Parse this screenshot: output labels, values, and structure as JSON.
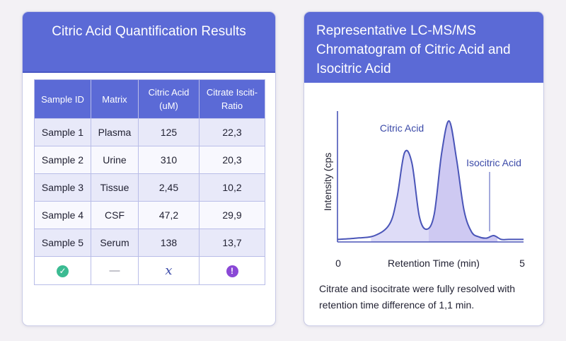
{
  "left_panel": {
    "title": "Citric Acid Quantification Results",
    "table": {
      "headers": [
        "Sample ID",
        "Matrix",
        "Citric Acid (uM)",
        "Citrate Isciti- Ratio"
      ],
      "rows": [
        [
          "Sample 1",
          "Plasma",
          "125",
          "22,3"
        ],
        [
          "Sample 2",
          "Urine",
          "310",
          "20,3"
        ],
        [
          "Sample 3",
          "Tissue",
          "2,45",
          "10,2"
        ],
        [
          "Sample 4",
          "CSF",
          "47,2",
          "29,9"
        ],
        [
          "Sample 5",
          "Serum",
          "138",
          "13,7"
        ]
      ],
      "status_icons": [
        "check-circle-icon",
        "dash-icon",
        "x-icon",
        "alert-circle-icon"
      ]
    }
  },
  "right_panel": {
    "title": "Representative LC-MS/MS Chromatogram of Citric Acid and Isocitric Acid",
    "footnote": "Citrate and isocitrate were fully resolved with retention time difference of 1,1 min."
  },
  "colors": {
    "header": "#5b6ad6",
    "line": "#4a55b8",
    "fill": "#d8d6f6",
    "fill_dark": "#c6bff0",
    "ok": "#3bbb92",
    "alert": "#8a48d6"
  },
  "chart_data": {
    "type": "line",
    "title": "Representative LC-MS/MS Chromatogram of Citric Acid and Isocitric Acid",
    "xlabel": "Retention Time (min)",
    "ylabel": "Intensity (cps",
    "xlim": [
      0,
      5
    ],
    "ylim": [
      0,
      100
    ],
    "x_tick_labels": [
      "0",
      "5"
    ],
    "grid": false,
    "series": [
      {
        "name": "",
        "x": [
          0,
          0.5,
          1.0,
          1.4,
          1.6,
          1.8,
          2.0,
          2.2,
          2.4,
          2.6,
          2.8,
          3.0,
          3.2,
          3.4,
          3.6,
          3.8,
          4.0,
          4.2,
          4.4,
          4.6,
          5.0
        ],
        "y": [
          2,
          3,
          5,
          14,
          35,
          70,
          62,
          20,
          10,
          22,
          70,
          95,
          65,
          25,
          8,
          4,
          3,
          5,
          2,
          2,
          2
        ]
      }
    ],
    "annotations": [
      {
        "text": "Citric Acid",
        "x": 1.85,
        "y": 88
      },
      {
        "text": "Isocitric Acid",
        "x": 4.3,
        "y": 62
      }
    ],
    "shaded_regions": [
      [
        0.9,
        2.45
      ],
      [
        2.45,
        4.3
      ]
    ]
  }
}
